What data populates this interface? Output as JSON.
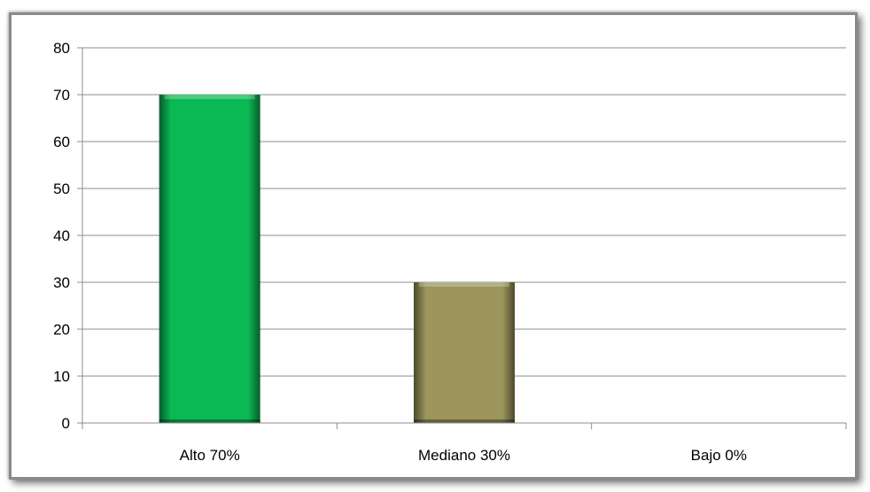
{
  "chart_data": {
    "type": "bar",
    "categories": [
      "Alto 70%",
      "Mediano 30%",
      "Bajo 0%"
    ],
    "values": [
      70,
      30,
      0
    ],
    "colors": [
      "#0bb954",
      "#9c955c",
      "#9c955c"
    ],
    "ylim": [
      0,
      80
    ],
    "yticks": [
      "0",
      "10",
      "20",
      "30",
      "40",
      "50",
      "60",
      "70",
      "80"
    ],
    "grid": true,
    "title": "",
    "xlabel": "",
    "ylabel": ""
  }
}
